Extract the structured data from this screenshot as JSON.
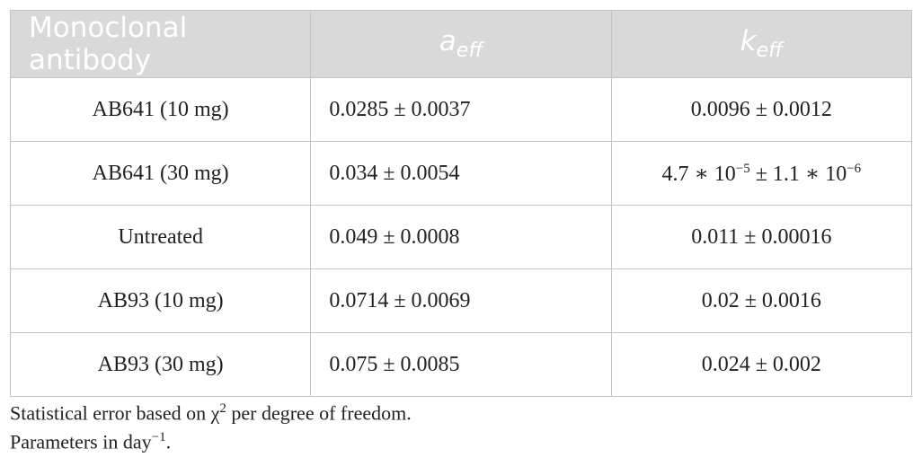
{
  "table": {
    "header": [
      "Monoclonal antibody",
      [
        {
          "text": "a"
        },
        {
          "sub": "eff"
        }
      ],
      [
        {
          "text": "k"
        },
        {
          "sub": "eff"
        }
      ]
    ],
    "rows": [
      [
        "AB641 (10 mg)",
        "0.0285 ± 0.0037",
        "0.0096 ± 0.0012"
      ],
      [
        "AB641 (30 mg)",
        "0.034 ± 0.0054",
        [
          {
            "text": "4.7 ∗ 10"
          },
          {
            "sup": "−5"
          },
          {
            "text": " ± 1.1 ∗ 10"
          },
          {
            "sup": "−6"
          }
        ]
      ],
      [
        "Untreated",
        "0.049 ± 0.0008",
        "0.011 ± 0.00016"
      ],
      [
        "AB93 (10 mg)",
        "0.0714 ± 0.0069",
        "0.02 ± 0.0016"
      ],
      [
        "AB93 (30 mg)",
        "0.075 ± 0.0085",
        "0.024 ± 0.002"
      ]
    ]
  },
  "footnotes": [
    [
      {
        "text": "Statistical error based on χ"
      },
      {
        "sup": "2"
      },
      {
        "text": " per degree of freedom."
      }
    ],
    [
      {
        "text": "Parameters in day"
      },
      {
        "sup": "−1"
      },
      {
        "text": "."
      }
    ]
  ]
}
